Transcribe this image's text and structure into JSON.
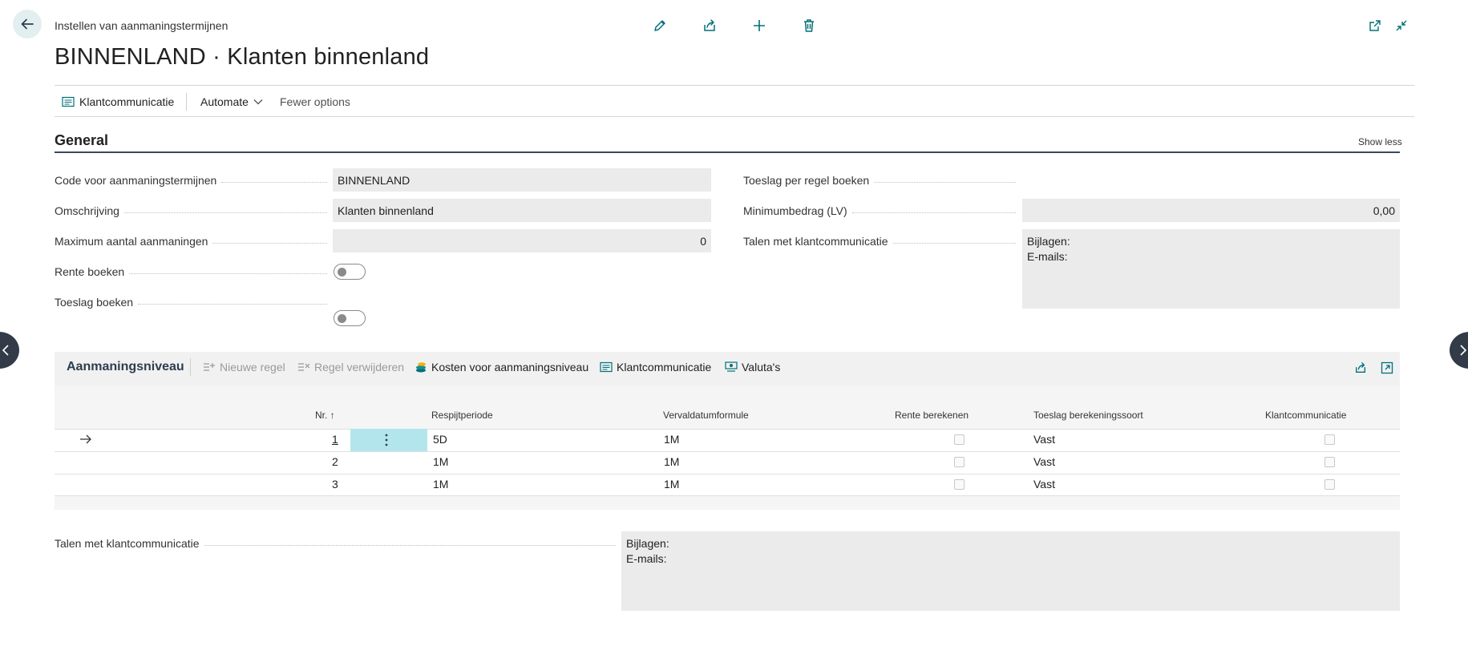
{
  "header": {
    "breadcrumb": "Instellen van aanmaningstermijnen",
    "title": "BINNENLAND · Klanten binnenland",
    "icons": [
      "edit-icon",
      "share-icon",
      "add-icon",
      "delete-icon",
      "open-new-window-icon",
      "collapse-icon"
    ]
  },
  "actionbar": {
    "klantcommunicatie": "Klantcommunicatie",
    "automate": "Automate",
    "fewer_options": "Fewer options"
  },
  "general": {
    "title": "General",
    "show_less": "Show less",
    "fields": {
      "code_label": "Code voor aanmaningstermijnen",
      "code_value": "BINNENLAND",
      "omschrijving_label": "Omschrijving",
      "omschrijving_value": "Klanten binnenland",
      "max_label": "Maximum aantal aanmaningen",
      "max_value": "0",
      "rente_label": "Rente boeken",
      "rente_value": false,
      "toeslag_label": "Toeslag boeken",
      "toeslag_value": false,
      "toeslag_regel_label": "Toeslag per regel boeken",
      "toeslag_regel_value": false,
      "minimum_label": "Minimumbedrag (LV)",
      "minimum_value": "0,00",
      "talen_label": "Talen met klantcommunicatie",
      "talen_bijlagen": "Bijlagen:",
      "talen_emails": "E-mails:"
    }
  },
  "subpage": {
    "title": "Aanmaningsniveau",
    "actions": {
      "nieuwe_regel": "Nieuwe regel",
      "regel_verwijderen": "Regel verwijderen",
      "kosten": "Kosten voor aanmaningsniveau",
      "klantcommunicatie": "Klantcommunicatie",
      "valutas": "Valuta's"
    },
    "columns": {
      "nr": "Nr. ↑",
      "respijt": "Respijtperiode",
      "vervaldatum": "Vervaldatumformule",
      "rente": "Rente berekenen",
      "toeslag": "Toeslag berekeningssoort",
      "klantcomm": "Klantcommunicatie"
    },
    "rows": [
      {
        "nr": "1",
        "respijt": "5D",
        "vervaldatum": "1M",
        "rente": false,
        "toeslag": "Vast",
        "klantcomm": false
      },
      {
        "nr": "2",
        "respijt": "1M",
        "vervaldatum": "1M",
        "rente": false,
        "toeslag": "Vast",
        "klantcomm": false
      },
      {
        "nr": "3",
        "respijt": "1M",
        "vervaldatum": "1M",
        "rente": false,
        "toeslag": "Vast",
        "klantcomm": false
      }
    ]
  },
  "footer": {
    "talen_label": "Talen met klantcommunicatie",
    "bijlagen": "Bijlagen:",
    "emails": "E-mails:"
  },
  "colors": {
    "accent": "#00707a",
    "selected_cell": "#b3e6ec",
    "field_bg": "#ebebeb",
    "nav_button": "#323b47"
  }
}
